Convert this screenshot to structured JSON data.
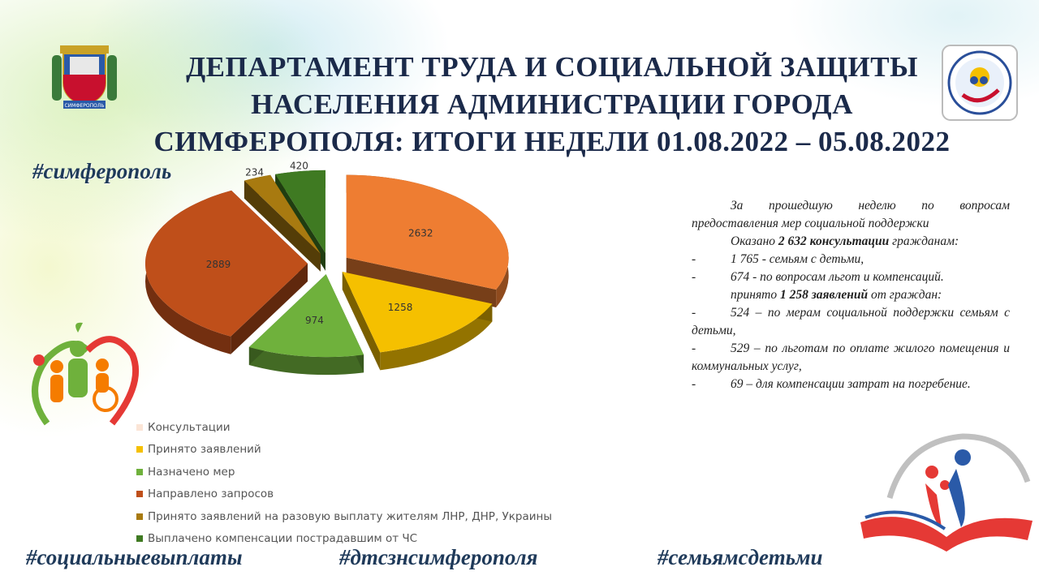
{
  "header": {
    "title_line1": "ДЕПАРТАМЕНТ ТРУДА И СОЦИАЛЬНОЙ ЗАЩИТЫ",
    "title_line2": "НАСЕЛЕНИЯ АДМИНИСТРАЦИИ ГОРОДА",
    "title_line3": "СИМФЕРОПОЛЯ: ИТОГИ НЕДЕЛИ 01.08.2022 – 05.08.2022"
  },
  "hashtags": {
    "simf": "#симферополь",
    "social": "#социальныевыплаты",
    "dtszn": "#дтсзнсимферополя",
    "family": "#семьямсдетьми"
  },
  "logos": {
    "coat_of_arms_label": "СИМФЕРОПОЛЬ"
  },
  "summary": {
    "intro": "За прошедшую неделю по вопросам предоставления мер социальной поддержки",
    "consult_prefix": "Оказано ",
    "consult_bold": "2 632 консультации",
    "consult_suffix": " гражданам:",
    "consult_items": [
      "1 765 - семьям с детьми,",
      "674 - по вопросам льгот и компенсаций."
    ],
    "apps_prefix": "принято ",
    "apps_bold": "1 258 заявлений",
    "apps_suffix": " от граждан:",
    "apps_items": [
      "524 – по мерам социальной поддержки семьям с детьми,",
      "529 – по льготам по оплате жилого помещения и коммунальных услуг,",
      "69 – для компенсации затрат на погребение."
    ],
    "dash": "-"
  },
  "chart_data": {
    "type": "pie",
    "title": "",
    "categories": [
      "Консультации",
      "Принято заявлений",
      "Назначено мер",
      "Направлено запросов",
      "Принято заявлений на разовую выплату жителям ЛНР, ДНР, Украины",
      "Выплачено компенсации пострадавшим от ЧС"
    ],
    "values": [
      2632,
      1258,
      974,
      2889,
      234,
      420
    ],
    "colors": [
      "#ee7d32",
      "#f5c000",
      "#6fb13c",
      "#bf4f1a",
      "#a87a10",
      "#3f7a22"
    ],
    "legend_position": "bottom-left",
    "data_labels": true,
    "exploded": true
  },
  "legend_swatch_colors": [
    "#fbe5d6",
    "#f5c000",
    "#6fb13c",
    "#bf4f1a",
    "#a87a10",
    "#3f7a22"
  ]
}
